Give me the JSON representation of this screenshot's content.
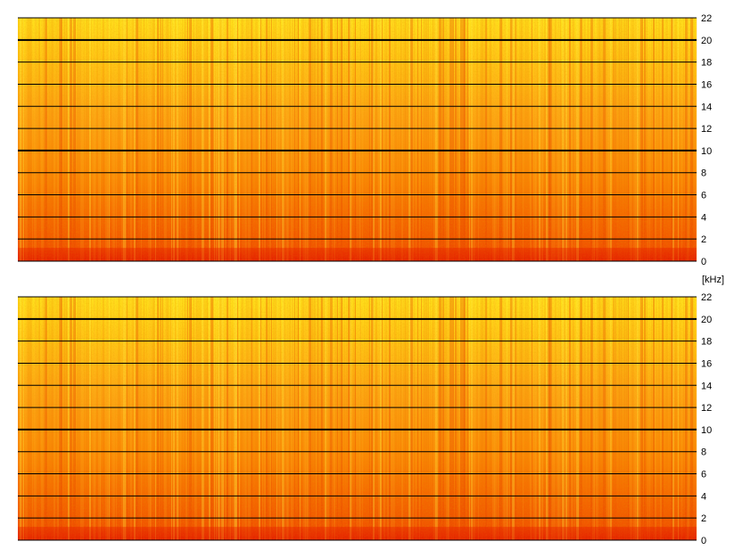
{
  "chart_data": [
    {
      "type": "heatmap",
      "channel": "top",
      "y_unit": "[kHz]",
      "ylim": [
        0,
        22
      ],
      "yticks": [
        0,
        2,
        4,
        6,
        8,
        10,
        12,
        14,
        16,
        18,
        20,
        22
      ],
      "major_gridlines": [
        10,
        20
      ],
      "colors": {
        "low": "#e02000",
        "mid": "#ff9a00",
        "high": "#ffe800"
      }
    },
    {
      "type": "heatmap",
      "channel": "bottom",
      "y_unit": "[kHz]",
      "ylim": [
        0,
        22
      ],
      "yticks": [
        0,
        2,
        4,
        6,
        8,
        10,
        12,
        14,
        16,
        18,
        20,
        22
      ],
      "major_gridlines": [
        10,
        20
      ],
      "colors": {
        "low": "#e02000",
        "mid": "#ff9a00",
        "high": "#ffe800"
      }
    }
  ]
}
